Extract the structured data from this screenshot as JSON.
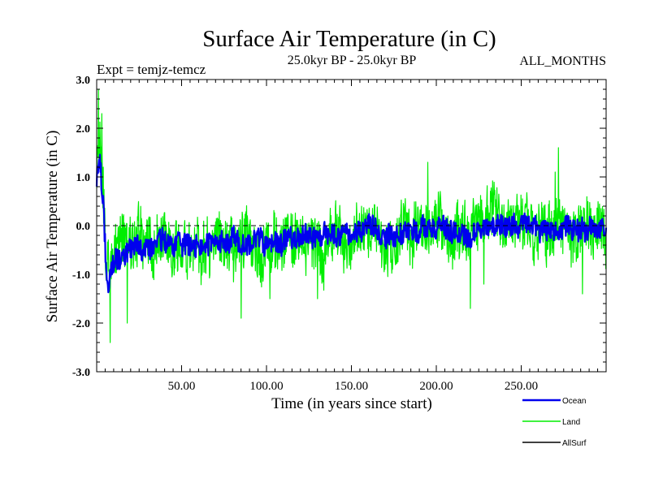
{
  "chart_data": {
    "type": "line",
    "title": "Surface Air Temperature (in C)",
    "subtitle_left": "Expt = temjz-temcz",
    "subtitle_center": "25.0kyr BP - 25.0kyr BP",
    "subtitle_right": "ALL_MONTHS",
    "xlabel": "Time (in years since start)",
    "ylabel": "Surface Air Temperature (in C)",
    "xlim": [
      0,
      300
    ],
    "ylim": [
      -3.0,
      3.0
    ],
    "xticks": [
      50,
      100,
      150,
      200,
      250
    ],
    "xtick_labels": [
      "50.00",
      "100.00",
      "150.00",
      "200.00",
      "250.00"
    ],
    "yticks": [
      -3,
      -2,
      -1,
      0,
      1,
      2,
      3
    ],
    "ytick_labels": [
      "-3.0",
      "-2.0",
      "-1.0",
      "0.0",
      "1.0",
      "2.0",
      "3.0"
    ],
    "reference_line": {
      "y": 0.0,
      "style": "dashed"
    },
    "series": [
      {
        "name": "Land",
        "color": "#00ee00",
        "trend": [
          [
            0,
            1.1
          ],
          [
            2,
            1.7
          ],
          [
            4,
            0.6
          ],
          [
            6,
            -0.9
          ],
          [
            10,
            -0.7
          ],
          [
            20,
            -0.4
          ],
          [
            40,
            -0.35
          ],
          [
            60,
            -0.4
          ],
          [
            80,
            -0.35
          ],
          [
            100,
            -0.4
          ],
          [
            120,
            -0.2
          ],
          [
            140,
            -0.2
          ],
          [
            150,
            -0.2
          ],
          [
            160,
            -0.05
          ],
          [
            170,
            -0.25
          ],
          [
            180,
            -0.15
          ],
          [
            190,
            -0.05
          ],
          [
            200,
            0.0
          ],
          [
            210,
            -0.15
          ],
          [
            220,
            -0.25
          ],
          [
            230,
            0.0
          ],
          [
            240,
            0.05
          ],
          [
            250,
            -0.05
          ],
          [
            260,
            -0.05
          ],
          [
            270,
            -0.05
          ],
          [
            280,
            -0.15
          ],
          [
            290,
            -0.05
          ],
          [
            300,
            -0.05
          ]
        ],
        "amplitude": 0.55,
        "extremes": [
          [
            1,
            2.8
          ],
          [
            3,
            2.3
          ],
          [
            8,
            -2.4
          ],
          [
            18,
            -2.0
          ],
          [
            85,
            -1.9
          ],
          [
            102,
            -1.5
          ],
          [
            130,
            -1.5
          ],
          [
            220,
            -1.7
          ],
          [
            228,
            -1.2
          ],
          [
            272,
            1.6
          ],
          [
            286,
            -1.4
          ],
          [
            195,
            1.3
          ],
          [
            270,
            1.1
          ]
        ]
      },
      {
        "name": "Ocean",
        "color": "#0000ee",
        "trend": [
          [
            0,
            1.0
          ],
          [
            2,
            1.3
          ],
          [
            4,
            0.4
          ],
          [
            6,
            -1.3
          ],
          [
            10,
            -0.85
          ],
          [
            20,
            -0.5
          ],
          [
            40,
            -0.35
          ],
          [
            60,
            -0.4
          ],
          [
            80,
            -0.3
          ],
          [
            100,
            -0.4
          ],
          [
            120,
            -0.25
          ],
          [
            140,
            -0.25
          ],
          [
            150,
            -0.15
          ],
          [
            160,
            0.0
          ],
          [
            170,
            -0.25
          ],
          [
            180,
            -0.15
          ],
          [
            190,
            -0.05
          ],
          [
            200,
            0.1
          ],
          [
            210,
            -0.15
          ],
          [
            220,
            -0.25
          ],
          [
            230,
            0.0
          ],
          [
            240,
            0.05
          ],
          [
            250,
            0.0
          ],
          [
            260,
            -0.05
          ],
          [
            270,
            0.0
          ],
          [
            280,
            -0.1
          ],
          [
            290,
            -0.05
          ],
          [
            300,
            -0.05
          ]
        ],
        "amplitude": 0.2
      },
      {
        "name": "AllSurf",
        "color": "#000000"
      }
    ],
    "legend": [
      "Ocean",
      "Land",
      "AllSurf"
    ],
    "legend_position": "bottom-right"
  }
}
